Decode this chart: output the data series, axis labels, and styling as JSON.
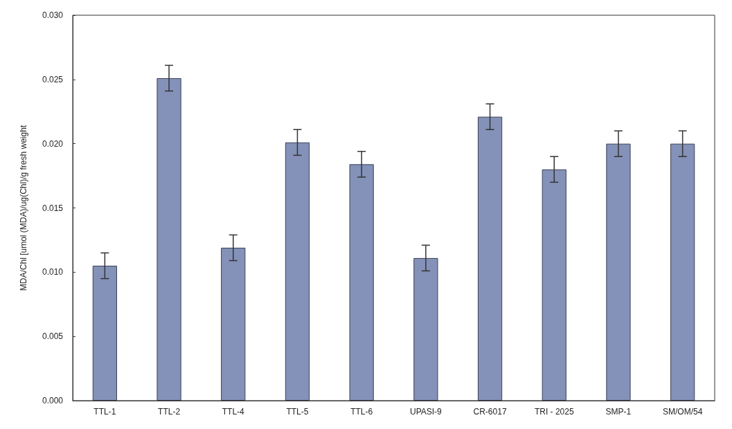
{
  "chart_data": {
    "type": "bar",
    "ylabel": "MDA/Chl [umol (MDA)/ug(Chl)/g fresh weight",
    "categories": [
      "TTL-1",
      "TTL-2",
      "TTL-4",
      "TTL-5",
      "TTL-6",
      "UPASI-9",
      "CR-6017",
      "TRI - 2025",
      "SMP-1",
      "SM/OM/54"
    ],
    "values": [
      0.0105,
      0.0251,
      0.0119,
      0.0201,
      0.0184,
      0.0111,
      0.0221,
      0.018,
      0.02,
      0.02
    ],
    "errors": [
      0.001,
      0.001,
      0.001,
      0.001,
      0.001,
      0.001,
      0.001,
      0.001,
      0.001,
      0.001
    ],
    "color": "#8491b8",
    "ylim": [
      0,
      0.03
    ],
    "yticks": [
      {
        "value": 0,
        "label": "0.000"
      },
      {
        "value": 0.005,
        "label": "0.005"
      },
      {
        "value": 0.01,
        "label": "0.010"
      },
      {
        "value": 0.015,
        "label": "0.015"
      },
      {
        "value": 0.02,
        "label": "0.020"
      },
      {
        "value": 0.025,
        "label": "0.025"
      },
      {
        "value": 0.03,
        "label": "0.030"
      }
    ],
    "grid": false
  }
}
